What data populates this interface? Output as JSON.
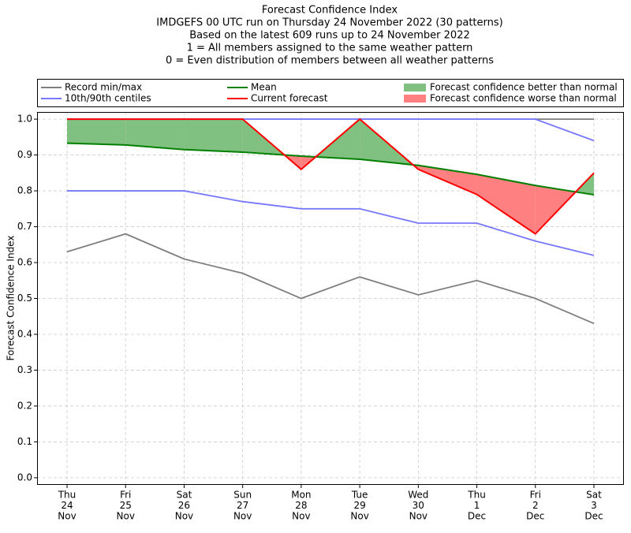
{
  "chart_data": {
    "type": "line",
    "title": "Forecast Confidence Index",
    "subtitle": [
      "IMDGEFS 00 UTC run on Thursday 24 November 2022 (30 patterns)",
      "Based on the latest 609 runs up to 24 November 2022",
      "1 = All members assigned to the same weather pattern",
      "0 = Even distribution of members between all weather patterns"
    ],
    "y_label": "Forecast Confidence Index",
    "categories": [
      [
        "Thu",
        "24",
        "Nov"
      ],
      [
        "Fri",
        "25",
        "Nov"
      ],
      [
        "Sat",
        "26",
        "Nov"
      ],
      [
        "Sun",
        "27",
        "Nov"
      ],
      [
        "Mon",
        "28",
        "Nov"
      ],
      [
        "Tue",
        "29",
        "Nov"
      ],
      [
        "Wed",
        "30",
        "Nov"
      ],
      [
        "Thu",
        "1",
        "Dec"
      ],
      [
        "Fri",
        "2",
        "Dec"
      ],
      [
        "Sat",
        "3",
        "Dec"
      ]
    ],
    "series": [
      {
        "name": "Record min/max",
        "color": "#7f7f7f",
        "values": [
          0.63,
          0.68,
          0.61,
          0.57,
          0.5,
          0.56,
          0.51,
          0.55,
          0.5,
          0.43
        ],
        "upper": [
          1,
          1,
          1,
          1,
          1,
          1,
          1,
          1,
          1,
          1
        ]
      },
      {
        "name": "10th/90th centiles",
        "color": "#7777ff",
        "values": [
          0.8,
          0.8,
          0.8,
          0.77,
          0.75,
          0.75,
          0.71,
          0.71,
          0.66,
          0.62
        ],
        "upper": [
          1,
          1,
          1,
          1,
          1,
          1,
          1,
          1,
          1,
          0.94
        ]
      },
      {
        "name": "Mean",
        "color": "#008000",
        "values": [
          0.933,
          0.928,
          0.915,
          0.908,
          0.897,
          0.888,
          0.871,
          0.846,
          0.815,
          0.789
        ]
      },
      {
        "name": "Current forecast",
        "color": "#ff0000",
        "values": [
          1,
          1,
          1,
          1,
          0.86,
          1,
          0.86,
          0.79,
          0.68,
          0.85
        ]
      }
    ],
    "fills": [
      {
        "name": "Forecast confidence better than normal",
        "color": "#80c080"
      },
      {
        "name": "Forecast confidence worse than normal",
        "color": "#ff8080"
      }
    ],
    "ylim": [
      -0.02,
      1.02
    ],
    "yticks": [
      {
        "value": 0,
        "label": "0.0"
      },
      0.1,
      0.2,
      0.3,
      0.4,
      0.5,
      0.6,
      0.7,
      0.8,
      0.9,
      {
        "value": 1,
        "label": "1.0"
      }
    ],
    "grid": true
  }
}
